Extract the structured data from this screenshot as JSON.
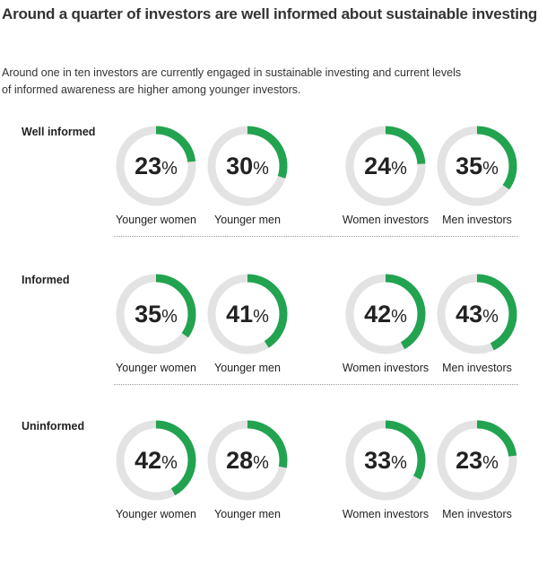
{
  "title": "Around a quarter of investors are well informed about sustainable investing",
  "subtitle": "Around one in ten investors are currently engaged in sustainable investing and current levels of informed awareness are higher among younger investors.",
  "colors": {
    "fill": "#22A34F",
    "track": "#E3E3E3"
  },
  "chart_data": {
    "type": "donut",
    "groups": [
      "Younger women",
      "Younger men",
      "Women investors",
      "Men investors"
    ],
    "sections": [
      {
        "label": "Well informed",
        "values": [
          23,
          30,
          24,
          35
        ],
        "display": [
          "23",
          "30",
          "24",
          "35"
        ]
      },
      {
        "label": "Informed",
        "values": [
          35,
          41,
          42,
          43
        ],
        "display": [
          "35",
          "41",
          "42",
          "43"
        ]
      },
      {
        "label": "Uninformed",
        "values": [
          42,
          28,
          33,
          23
        ],
        "display": [
          "42",
          "28",
          "33",
          "23"
        ]
      }
    ],
    "unit": "%"
  }
}
